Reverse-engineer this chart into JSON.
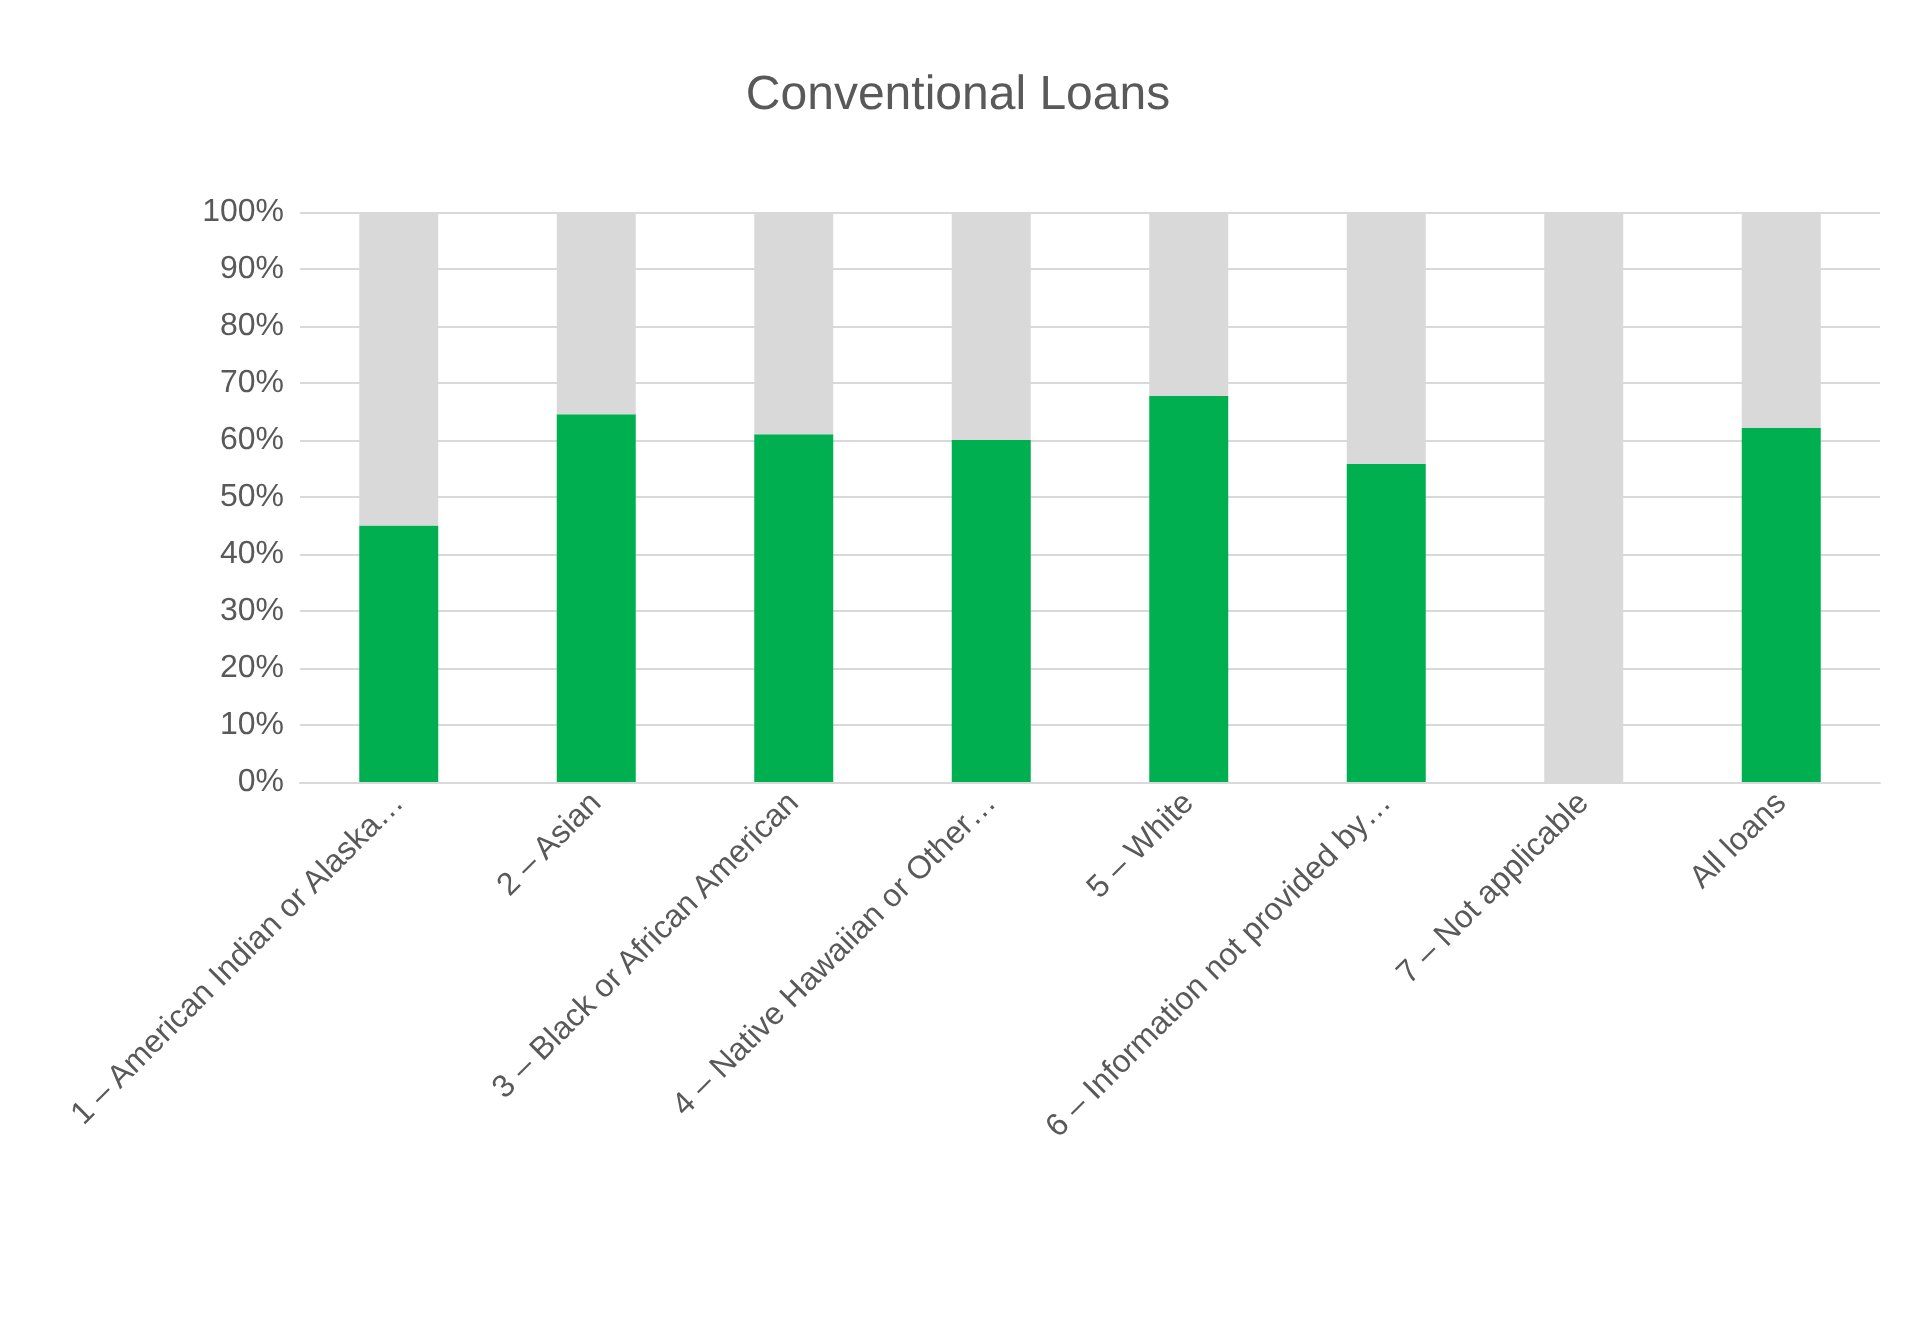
{
  "chart_data": {
    "type": "bar",
    "title": "Conventional Loans",
    "stacked": true,
    "categories": [
      "1 – American Indian or Alaska…",
      "2 – Asian",
      "3 – Black or African American",
      "4 – Native Hawaiian or Other…",
      "5 – White",
      "6 – Information not provided by…",
      "7 – Not applicable",
      "All loans"
    ],
    "series": [
      {
        "color": "#00b050",
        "values": [
          45,
          64.5,
          61,
          60,
          67.7,
          55.8,
          0,
          62.1
        ]
      },
      {
        "color": "#d9d9d9",
        "values": [
          55,
          35.5,
          39,
          40,
          32.3,
          44.2,
          100,
          37.9
        ]
      }
    ],
    "ylim": [
      0,
      100
    ],
    "yticks": [
      {
        "value": 0,
        "label": "0%"
      },
      {
        "value": 10,
        "label": "10%"
      },
      {
        "value": 20,
        "label": "20%"
      },
      {
        "value": 30,
        "label": "30%"
      },
      {
        "value": 40,
        "label": "40%"
      },
      {
        "value": 50,
        "label": "50%"
      },
      {
        "value": 60,
        "label": "60%"
      },
      {
        "value": 70,
        "label": "70%"
      },
      {
        "value": 80,
        "label": "80%"
      },
      {
        "value": 90,
        "label": "90%"
      },
      {
        "value": 100,
        "label": "100%"
      }
    ],
    "grid": "y"
  }
}
